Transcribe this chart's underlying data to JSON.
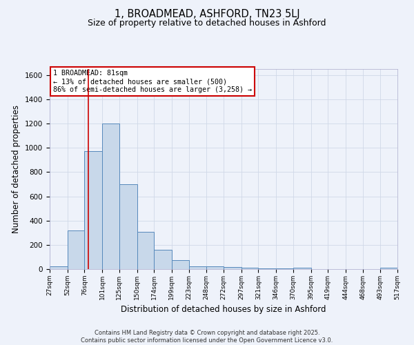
{
  "title_line1": "1, BROADMEAD, ASHFORD, TN23 5LJ",
  "title_line2": "Size of property relative to detached houses in Ashford",
  "xlabel": "Distribution of detached houses by size in Ashford",
  "ylabel": "Number of detached properties",
  "bin_edges": [
    27,
    52,
    76,
    101,
    125,
    150,
    174,
    199,
    223,
    248,
    272,
    297,
    321,
    346,
    370,
    395,
    419,
    444,
    468,
    493,
    517
  ],
  "bar_heights": [
    20,
    320,
    975,
    1200,
    700,
    305,
    160,
    75,
    25,
    20,
    15,
    10,
    5,
    5,
    10,
    0,
    0,
    0,
    0,
    10
  ],
  "bar_color": "#c8d8ea",
  "bar_edge_color": "#5588bb",
  "vline_x": 81,
  "vline_color": "#cc0000",
  "annotation_text": "1 BROADMEAD: 81sqm\n← 13% of detached houses are smaller (500)\n86% of semi-detached houses are larger (3,258) →",
  "annotation_box_color": "#cc0000",
  "annotation_bg": "#ffffff",
  "ylim": [
    0,
    1650
  ],
  "yticks": [
    0,
    200,
    400,
    600,
    800,
    1000,
    1200,
    1400,
    1600
  ],
  "grid_color": "#d0d8e8",
  "bg_color": "#eef2fa",
  "footer_text": "Contains HM Land Registry data © Crown copyright and database right 2025.\nContains public sector information licensed under the Open Government Licence v3.0.",
  "tick_labels": [
    "27sqm",
    "52sqm",
    "76sqm",
    "101sqm",
    "125sqm",
    "150sqm",
    "174sqm",
    "199sqm",
    "223sqm",
    "248sqm",
    "272sqm",
    "297sqm",
    "321sqm",
    "346sqm",
    "370sqm",
    "395sqm",
    "419sqm",
    "444sqm",
    "468sqm",
    "493sqm",
    "517sqm"
  ]
}
